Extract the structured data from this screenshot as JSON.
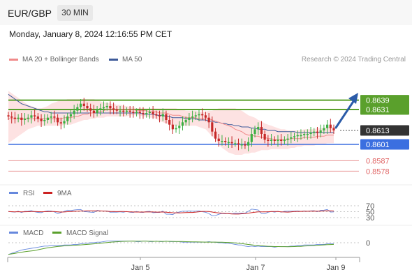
{
  "header": {
    "symbol": "EUR/GBP",
    "interval": "30 MIN"
  },
  "datetime": "Monday, January 8, 2024 12:16:55 PM CET",
  "legend": {
    "ma20": {
      "label": "MA 20 + Bollinger Bands",
      "color": "#f08a8a"
    },
    "ma50": {
      "label": "MA 50",
      "color": "#3d5a99"
    }
  },
  "credit": "Research © 2024 Trading Central",
  "colors": {
    "up_candle": "#3cb043",
    "down_candle": "#c62828",
    "resistance": "#5aa02c",
    "support": "#3b6fe0",
    "target": "#e06666",
    "current": "#333333",
    "arrow": "#2b5ba8",
    "band": "#fde2e2",
    "rsi": "#6688dd",
    "rsi_ma": "#cc2222",
    "macd": "#6688dd",
    "macd_signal": "#5aa02c"
  },
  "chart_data": [
    {
      "type": "candlestick",
      "ylim": [
        0.8568,
        0.8652
      ],
      "x_ticks": [
        "Jan 5",
        "Jan 7",
        "Jan 9"
      ],
      "levels": [
        {
          "name": "resistance-2",
          "value": 0.8639,
          "label": "0.8639",
          "kind": "resistance"
        },
        {
          "name": "resistance-1",
          "value": 0.8631,
          "label": "0.8631",
          "kind": "resistance"
        },
        {
          "name": "current",
          "value": 0.8613,
          "label": "0.8613",
          "kind": "current"
        },
        {
          "name": "support-1",
          "value": 0.8601,
          "label": "0.8601",
          "kind": "support"
        },
        {
          "name": "target-1",
          "value": 0.8587,
          "label": "0.8587",
          "kind": "target"
        },
        {
          "name": "target-2",
          "value": 0.8578,
          "label": "0.8578",
          "kind": "target"
        }
      ],
      "close": [
        0.8625,
        0.8624,
        0.8623,
        0.8624,
        0.8622,
        0.8623,
        0.8624,
        0.8626,
        0.8625,
        0.8623,
        0.8621,
        0.8622,
        0.8624,
        0.8625,
        0.8624,
        0.862,
        0.8619,
        0.8621,
        0.8625,
        0.8627,
        0.863,
        0.8633,
        0.8636,
        0.8634,
        0.8632,
        0.863,
        0.8628,
        0.8631,
        0.8632,
        0.8633,
        0.8634,
        0.8632,
        0.8631,
        0.863,
        0.863,
        0.8629,
        0.863,
        0.8629,
        0.8628,
        0.8629,
        0.8628,
        0.8627,
        0.8628,
        0.8629,
        0.8627,
        0.8626,
        0.8625,
        0.8627,
        0.8622,
        0.8618,
        0.8614,
        0.8615,
        0.8617,
        0.862,
        0.8622,
        0.8624,
        0.8625,
        0.8626,
        0.8627,
        0.8626,
        0.8624,
        0.862,
        0.8612,
        0.8606,
        0.8604,
        0.8604,
        0.8603,
        0.8603,
        0.8602,
        0.8602,
        0.8601,
        0.8601,
        0.86,
        0.8603,
        0.861,
        0.8614,
        0.8616,
        0.861,
        0.8605,
        0.8604,
        0.8605,
        0.8604,
        0.8605,
        0.8604,
        0.8605,
        0.8606,
        0.8607,
        0.8608,
        0.8609,
        0.8609,
        0.861,
        0.861,
        0.8611,
        0.8612,
        0.8611,
        0.8613,
        0.8615,
        0.8618,
        0.8615,
        0.8613
      ],
      "ma20": [
        0.8623,
        0.8623,
        0.8623,
        0.8623,
        0.8623,
        0.8623,
        0.8623,
        0.8623,
        0.8623,
        0.8623,
        0.8623,
        0.8623,
        0.8623,
        0.8623,
        0.8623,
        0.8623,
        0.8623,
        0.8624,
        0.8624,
        0.8624,
        0.8625,
        0.8625,
        0.8626,
        0.8627,
        0.8627,
        0.8628,
        0.8628,
        0.8629,
        0.8629,
        0.863,
        0.8631,
        0.8631,
        0.8631,
        0.8631,
        0.8631,
        0.8631,
        0.8631,
        0.8631,
        0.8631,
        0.863,
        0.863,
        0.863,
        0.863,
        0.8629,
        0.8629,
        0.8629,
        0.8628,
        0.8628,
        0.8628,
        0.8627,
        0.8626,
        0.8626,
        0.8626,
        0.8625,
        0.8624,
        0.8624,
        0.8624,
        0.8624,
        0.8623,
        0.8623,
        0.8623,
        0.8623,
        0.8622,
        0.8621,
        0.862,
        0.8619,
        0.8618,
        0.8617,
        0.8616,
        0.8614,
        0.8613,
        0.8612,
        0.861,
        0.8609,
        0.8609,
        0.8608,
        0.8608,
        0.8607,
        0.8607,
        0.8606,
        0.8606,
        0.8605,
        0.8605,
        0.8605,
        0.8605,
        0.8605,
        0.8606,
        0.8606,
        0.8606,
        0.8606,
        0.8607,
        0.8607,
        0.8607,
        0.8607,
        0.8608,
        0.8608,
        0.8608,
        0.8609,
        0.8609,
        0.8609
      ],
      "ma50": [
        0.8644,
        0.8642,
        0.864,
        0.8638,
        0.8636,
        0.8635,
        0.8634,
        0.8633,
        0.8632,
        0.8631,
        0.863,
        0.8629,
        0.8629,
        0.8628,
        0.8628,
        0.8628,
        0.8628,
        0.8628,
        0.8628,
        0.8628,
        0.8628,
        0.8628,
        0.8628,
        0.8628,
        0.8628,
        0.8628,
        0.8628,
        0.8628,
        0.8628,
        0.8628,
        0.8628,
        0.8628,
        0.8628,
        0.8628,
        0.8628,
        0.8628,
        0.8628,
        0.8628,
        0.8628,
        0.8628,
        0.8628,
        0.8627,
        0.8627,
        0.8627,
        0.8627,
        0.8626,
        0.8626,
        0.8626,
        0.8625,
        0.8625,
        0.8624,
        0.8624,
        0.8624,
        0.8624,
        0.8623,
        0.8623,
        0.8623,
        0.8623,
        0.8622,
        0.8622,
        0.8622,
        0.8621,
        0.8621,
        0.862,
        0.862,
        0.8619,
        0.8619,
        0.8618,
        0.8618,
        0.8617,
        0.8617,
        0.8616,
        0.8616,
        0.8616,
        0.8615,
        0.8615,
        0.8614,
        0.8614,
        0.8614,
        0.8613,
        0.8613,
        0.8613,
        0.8612,
        0.8612,
        0.8612,
        0.8612,
        0.8612,
        0.8612,
        0.8611,
        0.8611,
        0.8611,
        0.8611,
        0.8611,
        0.8611,
        0.8611,
        0.8611,
        0.8611,
        0.8611,
        0.8611,
        0.8611
      ],
      "band_upper": [
        0.8647,
        0.8645,
        0.8643,
        0.8641,
        0.8639,
        0.8637,
        0.8635,
        0.8634,
        0.8633,
        0.8632,
        0.8632,
        0.8633,
        0.8634,
        0.8636,
        0.8637,
        0.8638,
        0.8639,
        0.8639,
        0.864,
        0.864,
        0.864,
        0.864,
        0.864,
        0.864,
        0.864,
        0.864,
        0.864,
        0.8639,
        0.8638,
        0.8637,
        0.8637,
        0.8636,
        0.8636,
        0.8635,
        0.8635,
        0.8634,
        0.8634,
        0.8633,
        0.8633,
        0.8632,
        0.8632,
        0.8632,
        0.8632,
        0.8632,
        0.8632,
        0.8632,
        0.8632,
        0.8632,
        0.8632,
        0.8632,
        0.8632,
        0.8632,
        0.8631,
        0.8631,
        0.863,
        0.863,
        0.863,
        0.863,
        0.8629,
        0.8629,
        0.8629,
        0.863,
        0.863,
        0.8631,
        0.8632,
        0.8632,
        0.8632,
        0.8632,
        0.8632,
        0.8632,
        0.8631,
        0.863,
        0.8628,
        0.8626,
        0.8625,
        0.8624,
        0.8622,
        0.8621,
        0.8619,
        0.8618,
        0.8617,
        0.8616,
        0.8615,
        0.8614,
        0.8614,
        0.8613,
        0.8613,
        0.8613,
        0.8613,
        0.8613,
        0.8614,
        0.8614,
        0.8614,
        0.8614,
        0.8615,
        0.8615,
        0.8615,
        0.8616,
        0.8616,
        0.8616
      ],
      "band_lower": [
        0.8602,
        0.8604,
        0.8606,
        0.8608,
        0.861,
        0.8612,
        0.8614,
        0.8615,
        0.8616,
        0.8617,
        0.8617,
        0.8617,
        0.8617,
        0.8617,
        0.8617,
        0.8617,
        0.8617,
        0.8618,
        0.8618,
        0.8618,
        0.8619,
        0.862,
        0.8621,
        0.8622,
        0.8622,
        0.8623,
        0.8623,
        0.8624,
        0.8624,
        0.8624,
        0.8625,
        0.8625,
        0.8625,
        0.8625,
        0.8625,
        0.8625,
        0.8625,
        0.8626,
        0.8626,
        0.8626,
        0.8626,
        0.8625,
        0.8625,
        0.8624,
        0.8624,
        0.8623,
        0.8621,
        0.862,
        0.8619,
        0.8618,
        0.8617,
        0.8617,
        0.8617,
        0.8617,
        0.8617,
        0.8617,
        0.8617,
        0.8617,
        0.8616,
        0.8615,
        0.8614,
        0.8611,
        0.8608,
        0.8605,
        0.8601,
        0.8598,
        0.8596,
        0.8594,
        0.8593,
        0.8592,
        0.8592,
        0.8592,
        0.8593,
        0.8593,
        0.8594,
        0.8594,
        0.8595,
        0.8596,
        0.8596,
        0.8596,
        0.8597,
        0.8597,
        0.8597,
        0.8597,
        0.8597,
        0.8597,
        0.8598,
        0.8598,
        0.8599,
        0.8599,
        0.86,
        0.86,
        0.86,
        0.86,
        0.8601,
        0.8601,
        0.8601,
        0.8602,
        0.8602,
        0.8602
      ]
    },
    {
      "type": "line",
      "title": "RSI",
      "series": [
        {
          "name": "RSI"
        },
        {
          "name": "9MA"
        }
      ],
      "y_ticks": [
        "70",
        "50",
        "30"
      ],
      "ylim": [
        20,
        80
      ]
    },
    {
      "type": "line",
      "title": "MACD",
      "series": [
        {
          "name": "MACD"
        },
        {
          "name": "MACD Signal"
        }
      ],
      "y_ticks": [
        "0"
      ]
    }
  ]
}
